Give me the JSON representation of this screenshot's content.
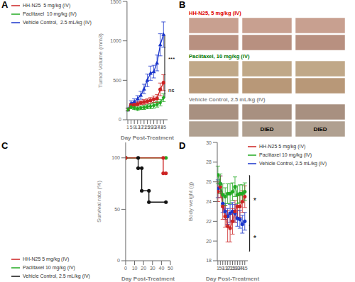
{
  "chart_data": [
    {
      "type": "line",
      "title": "A",
      "xlabel": "Day Post-Treatment",
      "ylabel": "Tumor Volume (mm3)",
      "x": [
        1,
        5,
        9,
        13,
        17,
        21,
        25,
        29,
        33,
        37,
        41,
        45
      ],
      "xlim": [
        0,
        50
      ],
      "xticks": [
        1,
        5,
        9,
        13,
        17,
        21,
        25,
        29,
        33,
        37,
        41,
        45
      ],
      "ylim": [
        0,
        1500
      ],
      "yticks": [
        0,
        500,
        1000,
        1500
      ],
      "grid": false,
      "legend": "upper left",
      "series": [
        {
          "name": "Vehicle Control,  2.5 mL/kg (IV)",
          "color": "#1a35cc",
          "marker": "triangle",
          "values": [
            130,
            210,
            230,
            265,
            310,
            390,
            500,
            590,
            610,
            720,
            950,
            1080
          ],
          "errors": [
            20,
            30,
            35,
            40,
            50,
            60,
            80,
            90,
            80,
            100,
            140,
            160
          ]
        },
        {
          "name": "HH-N25  5 mg/kg (IV)",
          "color": "#cc2222",
          "marker": "circle",
          "values": [
            130,
            185,
            190,
            200,
            215,
            225,
            235,
            245,
            260,
            270,
            385,
            470
          ],
          "errors": [
            15,
            25,
            20,
            25,
            25,
            30,
            30,
            35,
            40,
            50,
            80,
            100
          ]
        },
        {
          "name": "Paclitaxel  10 mg/kg (IV)",
          "color": "#22aa22",
          "marker": "diamond",
          "values": [
            130,
            160,
            150,
            140,
            150,
            155,
            165,
            170,
            180,
            195,
            215,
            280
          ],
          "errors": [
            15,
            20,
            20,
            20,
            20,
            25,
            25,
            30,
            35,
            35,
            40,
            50
          ]
        }
      ],
      "annotations": [
        {
          "text": "***",
          "between": [
            "Vehicle Control,  2.5 mL/kg (IV)",
            "HH-N25  5 mg/kg (IV)"
          ]
        },
        {
          "text": "ns",
          "between": [
            "HH-N25  5 mg/kg (IV)",
            "Paclitaxel  10 mg/kg (IV)"
          ]
        }
      ]
    },
    {
      "type": "photo_grid",
      "title": "B",
      "annotations": [
        {
          "text": "HH-N25, 5 mg/kg (IV)",
          "color": "#dd0000"
        },
        {
          "text": "Paclitaxel, 10 mg/kg (IV)",
          "color": "#007700"
        },
        {
          "text": "Vehicle Control, 2.5 mL/kg (IV)",
          "color": "#888888",
          "photo_labels": [
            null,
            "DIED",
            "DIED"
          ]
        }
      ]
    },
    {
      "type": "line",
      "title": "C",
      "line_style": "step",
      "marker": "circle",
      "xlabel": "Day Post-Treatment",
      "ylabel": "Survival rate (%)",
      "xlim": [
        0,
        50
      ],
      "xticks": [
        0,
        10,
        20,
        30,
        40,
        50
      ],
      "ylim": [
        0,
        115
      ],
      "yticks": [
        0,
        50,
        100
      ],
      "grid": false,
      "legend": "lower left",
      "series": [
        {
          "name": "Vehicle Control, 2.5 mL/kg (IV)",
          "color": "#111111",
          "x": [
            0,
            14,
            14,
            18,
            18,
            26,
            26,
            45
          ],
          "values": [
            100,
            100,
            90,
            90,
            68,
            68,
            57,
            57
          ]
        },
        {
          "name": "Paclitaxel 10 mg/kg (IV)",
          "color": "#22aa22",
          "x": [
            0,
            45
          ],
          "values": [
            100,
            100
          ]
        },
        {
          "name": "HH-N25 5 mg/kg (IV)",
          "color": "#cc2222",
          "x": [
            0,
            42,
            42,
            45
          ],
          "values": [
            100,
            100,
            85,
            85
          ]
        }
      ]
    },
    {
      "type": "line",
      "title": "D",
      "marker": "circle",
      "xlabel": "Day Post-Treatment",
      "ylabel": "Body weight (g)",
      "x": [
        1,
        5,
        9,
        13,
        17,
        21,
        25,
        29,
        33,
        37,
        41,
        45
      ],
      "xlim": [
        0,
        50
      ],
      "xticks": [
        1,
        5,
        9,
        13,
        17,
        21,
        25,
        29,
        33,
        37,
        41,
        45
      ],
      "ylim": [
        18,
        30
      ],
      "yticks": [
        18,
        20,
        22,
        24,
        26,
        28,
        30
      ],
      "grid": false,
      "legend": "upper right",
      "series": [
        {
          "name": "Vehicle Control, 2.5 mL/kg (IV)",
          "color": "#1a35cc",
          "values": [
            25.3,
            25.8,
            23.8,
            23.0,
            22.5,
            22.8,
            23.0,
            22.8,
            22.3,
            22.2,
            21.7,
            22.0
          ],
          "errors": [
            0.9,
            0.8,
            0.9,
            0.8,
            0.8,
            0.9,
            0.9,
            0.9,
            0.8,
            0.9,
            0.9,
            0.9
          ]
        },
        {
          "name": "HH-N25 5 mg/kg (IV)",
          "color": "#cc2222",
          "values": [
            25.0,
            25.5,
            23.5,
            22.5,
            21.5,
            21.3,
            22.0,
            23.0,
            23.5,
            23.5,
            24.0,
            24.5
          ],
          "errors": [
            1.0,
            1.1,
            1.3,
            1.1,
            1.6,
            1.4,
            1.3,
            1.1,
            1.1,
            1.1,
            1.1,
            1.1
          ]
        },
        {
          "name": "Paclitaxel 10 mg/kg (IV)",
          "color": "#22aa22",
          "values": [
            26.7,
            25.8,
            24.7,
            24.5,
            24.8,
            24.8,
            25.0,
            25.5,
            24.7,
            24.8,
            24.8,
            25.0
          ],
          "errors": [
            0.9,
            1.0,
            1.1,
            0.9,
            1.0,
            1.0,
            0.9,
            1.0,
            0.9,
            0.9,
            0.9,
            0.9
          ]
        }
      ],
      "annotations": [
        {
          "text": "*"
        },
        {
          "text": "*"
        }
      ]
    }
  ]
}
